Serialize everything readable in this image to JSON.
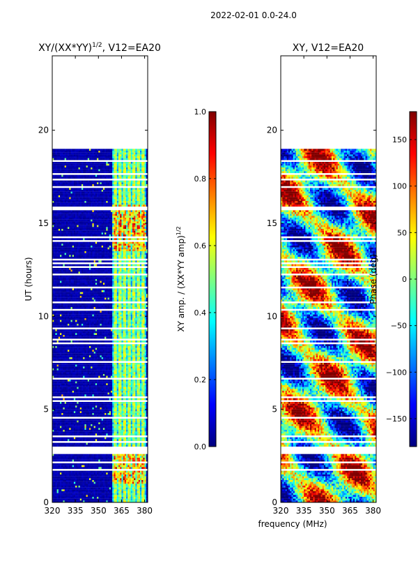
{
  "suptitle": "2022-02-01 0.0-24.0",
  "shared_xlabel": "frequency (MHz)",
  "colors": {
    "jet": [
      "#00007f",
      "#0000ff",
      "#007fff",
      "#00ffff",
      "#7fff7f",
      "#ffff00",
      "#ff7f00",
      "#ff0000",
      "#7f0000"
    ],
    "no_data": "#ffffff",
    "frame": "#000000"
  },
  "chart_data": [
    {
      "type": "heatmap",
      "title": "XY/(XX*YY)",
      "title_sup": "1/2",
      "title_suffix": ", V12=EA20",
      "xlabel": "",
      "ylabel": "UT (hours)",
      "xlim": [
        320,
        382
      ],
      "ylim": [
        0,
        24
      ],
      "x_ticks": [
        320,
        335,
        350,
        365,
        380
      ],
      "y_ticks": [
        0,
        5,
        10,
        15,
        20
      ],
      "x_tick_labels": [
        "320",
        "335",
        "350",
        "365",
        "380"
      ],
      "y_tick_labels": [
        "0",
        "5",
        "10",
        "15",
        "20"
      ],
      "data_extent_hours": [
        0,
        19
      ],
      "colorbar": {
        "label": "XY amp. / (XX*YY amp)",
        "label_sup": "1/2",
        "range": [
          0.0,
          1.0
        ],
        "ticks": [
          0.0,
          0.2,
          0.4,
          0.6,
          0.8,
          1.0
        ],
        "tick_labels": [
          "0.0",
          "0.2",
          "0.4",
          "0.6",
          "0.8",
          "1.0"
        ]
      }
    },
    {
      "type": "heatmap",
      "title": "XY, V12=EA20",
      "xlabel": "frequency (MHz)",
      "ylabel": "",
      "xlim": [
        320,
        382
      ],
      "ylim": [
        0,
        24
      ],
      "x_ticks": [
        320,
        335,
        350,
        365,
        380
      ],
      "y_ticks": [
        0,
        5,
        10,
        15,
        20
      ],
      "x_tick_labels": [
        "320",
        "335",
        "350",
        "365",
        "380"
      ],
      "y_tick_labels": [
        "0",
        "5",
        "10",
        "15",
        "20"
      ],
      "data_extent_hours": [
        0,
        19
      ],
      "colorbar": {
        "label": "Phase (deg)",
        "range": [
          -180,
          180
        ],
        "ticks": [
          -150,
          -100,
          -50,
          0,
          50,
          100,
          150
        ],
        "tick_labels": [
          "−150",
          "−100",
          "−50",
          "0",
          "50",
          "100",
          "150"
        ]
      }
    }
  ]
}
